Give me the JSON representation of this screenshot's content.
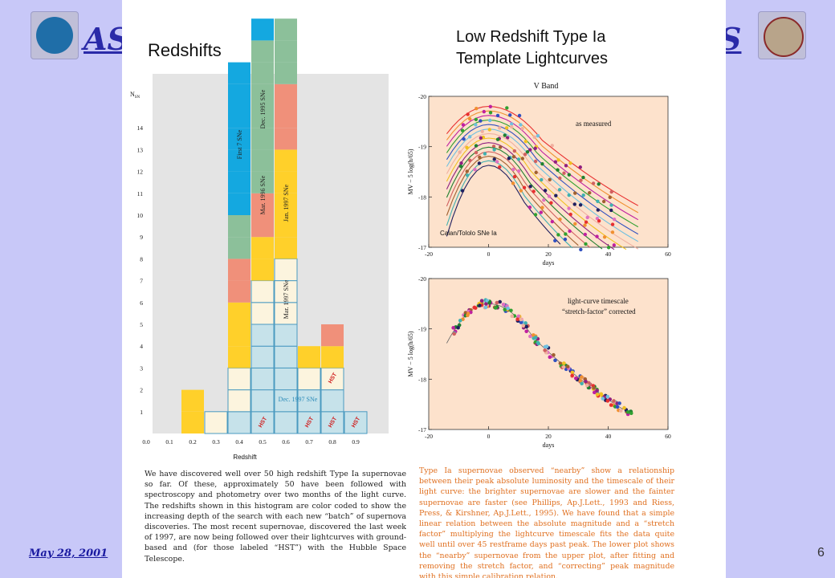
{
  "header": {
    "left_text": "AS",
    "right_text": "S"
  },
  "footer": {
    "date": "May 28, 2001",
    "page_number": "6"
  },
  "colors": {
    "background": "#c8c8f8",
    "header_text": "#2a2aa8",
    "cyan": "#14a8e0",
    "green": "#8cc09a",
    "salmon": "#f0907a",
    "yellow": "#ffd02a",
    "cream": "#fcf4de",
    "lightblue": "#c6e2ea",
    "panel_bg": "#fde2cc"
  },
  "histogram": {
    "title": "Redshifts",
    "ylabel": "N",
    "ylabel_sub": "SN",
    "xlabel": "Redshift",
    "xticks": [
      "0.0",
      "0.1",
      "0.2",
      "0.3",
      "0.4",
      "0.5",
      "0.6",
      "0.7",
      "0.8",
      "0.9"
    ],
    "yticks": [
      "1",
      "2",
      "3",
      "4",
      "5",
      "6",
      "7",
      "8",
      "9",
      "10",
      "11",
      "12",
      "13",
      "14"
    ],
    "batch_labels": [
      "First 7 SNe",
      "Dec. 1995 SNe",
      "Mar. 1996 SNe",
      "Jan. 1997 SNe",
      "Mar. 1997 SNe",
      "Dec. 1997 SNe"
    ],
    "hst_label": "HST"
  },
  "chart_data": [
    {
      "type": "bar",
      "title": "Redshifts",
      "xlabel": "Redshift",
      "ylabel": "NSN",
      "xlim": [
        0.0,
        0.9
      ],
      "ylim": [
        0,
        14
      ],
      "stacks": [
        {
          "x": 0.2,
          "cells": [
            "yellow",
            "yellow"
          ]
        },
        {
          "x": 0.3,
          "cells": [
            "cream"
          ]
        },
        {
          "x": 0.4,
          "cells": [
            "lightblue",
            "cream",
            "cream",
            "yellow",
            "yellow",
            "yellow",
            "salmon",
            "salmon",
            "green",
            "green",
            "cyan",
            "cyan",
            "cyan",
            "cyan",
            "cyan",
            "cyan",
            "cyan"
          ]
        },
        {
          "x": 0.5,
          "cells": [
            "lightblue",
            "lightblue",
            "lightblue",
            "lightblue",
            "lightblue",
            "cream",
            "cream",
            "yellow",
            "yellow",
            "salmon",
            "salmon",
            "green",
            "green",
            "green",
            "green",
            "green",
            "green",
            "green",
            "cyan"
          ]
        },
        {
          "x": 0.6,
          "cells": [
            "lightblue",
            "lightblue",
            "lightblue",
            "lightblue",
            "lightblue",
            "cream",
            "cream",
            "cream",
            "yellow",
            "yellow",
            "yellow",
            "yellow",
            "yellow",
            "salmon",
            "salmon",
            "salmon",
            "green",
            "green",
            "green"
          ]
        },
        {
          "x": 0.7,
          "cells": [
            "lightblue",
            "lightblue",
            "cream",
            "yellow"
          ]
        },
        {
          "x": 0.8,
          "cells": [
            "lightblue",
            "lightblue",
            "cream",
            "yellow",
            "salmon"
          ]
        },
        {
          "x": 0.9,
          "cells": [
            "lightblue"
          ]
        }
      ]
    },
    {
      "type": "scatter",
      "title": "V Band",
      "subtitle": "as measured",
      "annotation": "Calan/Tololo SNe Ia",
      "xlabel": "days",
      "ylabel": "MV – 5 log(h/65)",
      "xlim": [
        -20,
        60
      ],
      "ylim": [
        -17,
        -20
      ],
      "xticks": [
        "-20",
        "0",
        "20",
        "40",
        "60"
      ],
      "yticks": [
        "-20",
        "-19",
        "-18",
        "-17"
      ]
    },
    {
      "type": "scatter",
      "title": "",
      "subtitle": "light-curve timescale\n“stretch-factor” corrected",
      "xlabel": "days",
      "ylabel": "MV – 5 log(h/65)",
      "xlim": [
        -20,
        60
      ],
      "ylim": [
        -17,
        -20
      ],
      "xticks": [
        "-20",
        "0",
        "20",
        "40",
        "60"
      ],
      "yticks": [
        "-20",
        "-19",
        "-18",
        "-17"
      ]
    }
  ],
  "lightcurves": {
    "title_line1": "Low Redshift Type Ia",
    "title_line2": "Template Lightcurves",
    "panel_title": "V Band",
    "top_label": "as measured",
    "top_annotation": "Calan/Tololo SNe Ia",
    "bottom_label_line1": "light-curve timescale",
    "bottom_label_line2": "“stretch-factor” corrected",
    "xlabel": "days",
    "ylabel": "MV − 5 log(h/65)",
    "xticks": [
      "-20",
      "0",
      "20",
      "40",
      "60"
    ],
    "yticks": [
      "-20",
      "-19",
      "-18",
      "-17"
    ]
  },
  "captions": {
    "left": "We have discovered well over 50 high redshift Type Ia supernovae so far. Of these, approximately 50 have been followed with spectroscopy and photometry over two months of the light curve. The redshifts shown in this histogram are color coded to show the increasing depth of the search with each new “batch” of supernova discoveries. The most recent supernovae, discovered the last week of 1997, are now being followed over their lightcurves with ground-based and (for those labeled “HST”) with the Hubble Space Telescope.",
    "right": "Type Ia supernovae observed “nearby” show a relationship between their peak absolute luminosity and the timescale of their light curve: the brighter supernovae are slower and the fainter supernovae are faster (see Phillips, Ap.J.Lett., 1993 and Riess, Press, & Kirshner, Ap.J.Lett., 1995). We have found that a simple linear relation between the absolute magnitude and a “stretch factor” multiplying the lightcurve timescale fits the data quite well until over 45 restframe days past peak. The lower plot shows the “nearby” supernovae from the upper plot, after fitting and removing the stretch factor, and “correcting” peak magnitude with this simple calibration relation."
  }
}
